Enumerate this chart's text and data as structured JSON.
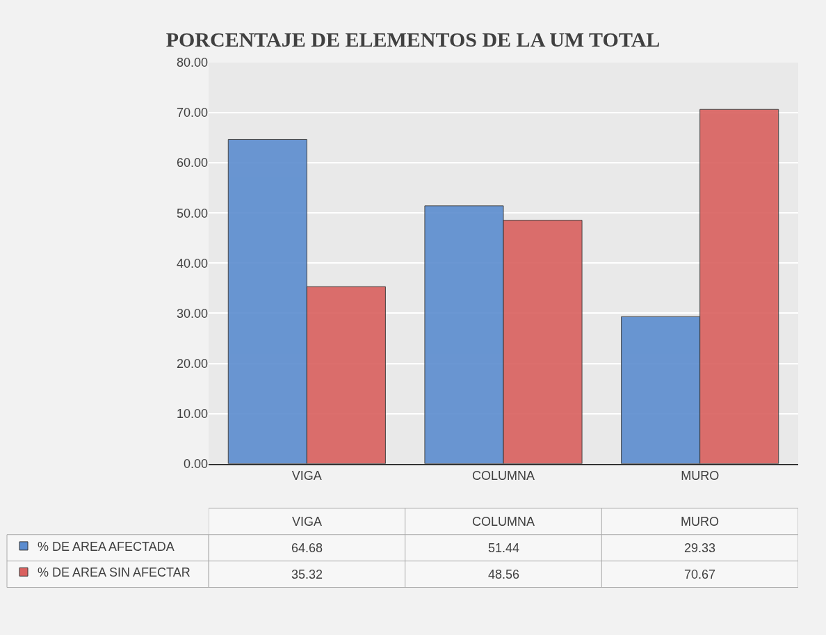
{
  "chart_data": {
    "type": "bar",
    "title": "PORCENTAJE DE ELEMENTOS DE LA UM TOTAL",
    "categories": [
      "VIGA",
      "COLUMNA",
      "MURO"
    ],
    "series": [
      {
        "name": "% DE AREA AFECTADA",
        "color": "#5b8ccf",
        "values": [
          64.68,
          51.44,
          29.33
        ]
      },
      {
        "name": "% DE AREA SIN AFECTAR",
        "color": "#d9605e",
        "values": [
          35.32,
          48.56,
          70.67
        ]
      }
    ],
    "ylim": [
      0,
      80
    ],
    "yticks": [
      {
        "value": 0,
        "label": "0.00"
      },
      {
        "value": 10,
        "label": "10.00"
      },
      {
        "value": 20,
        "label": "20.00"
      },
      {
        "value": 30,
        "label": "30.00"
      },
      {
        "value": 40,
        "label": "40.00"
      },
      {
        "value": 50,
        "label": "50.00"
      },
      {
        "value": 60,
        "label": "60.00"
      },
      {
        "value": 70,
        "label": "70.00"
      },
      {
        "value": 80,
        "label": "80.00"
      }
    ],
    "grid": "y",
    "legend": "bottom left",
    "data_labels": true
  }
}
